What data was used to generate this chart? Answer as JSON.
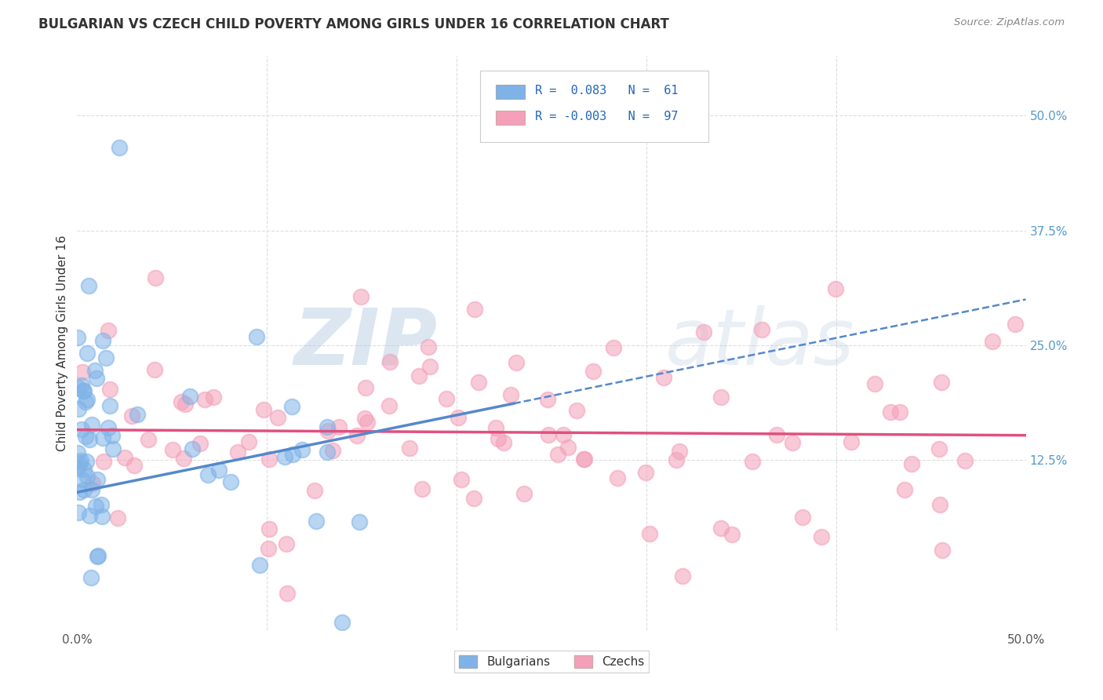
{
  "title": "BULGARIAN VS CZECH CHILD POVERTY AMONG GIRLS UNDER 16 CORRELATION CHART",
  "source": "Source: ZipAtlas.com",
  "ylabel": "Child Poverty Among Girls Under 16",
  "xlim": [
    0.0,
    0.5
  ],
  "ylim": [
    -0.06,
    0.565
  ],
  "xtick_labels": [
    "0.0%",
    "",
    "",
    "",
    "",
    "50.0%"
  ],
  "xtick_positions": [
    0.0,
    0.1,
    0.2,
    0.3,
    0.4,
    0.5
  ],
  "ytick_labels_right": [
    "50.0%",
    "37.5%",
    "25.0%",
    "12.5%"
  ],
  "ytick_positions_right": [
    0.5,
    0.375,
    0.25,
    0.125
  ],
  "bulgarian_color": "#7fb3e8",
  "czech_color": "#f4a0b8",
  "bulgarian_R": "0.083",
  "bulgarian_N": "61",
  "czech_R": "-0.003",
  "czech_N": "97",
  "bg_color": "#ffffff",
  "grid_color": "#dddddd",
  "legend_bulgarian_label": "Bulgarians",
  "legend_czech_label": "Czechs",
  "bulg_trend_color": "#5588cc",
  "czech_trend_color": "#e05080",
  "watermark_color": "#c8d8e8",
  "watermark_text_1": "ZIP",
  "watermark_text_2": "atlas"
}
